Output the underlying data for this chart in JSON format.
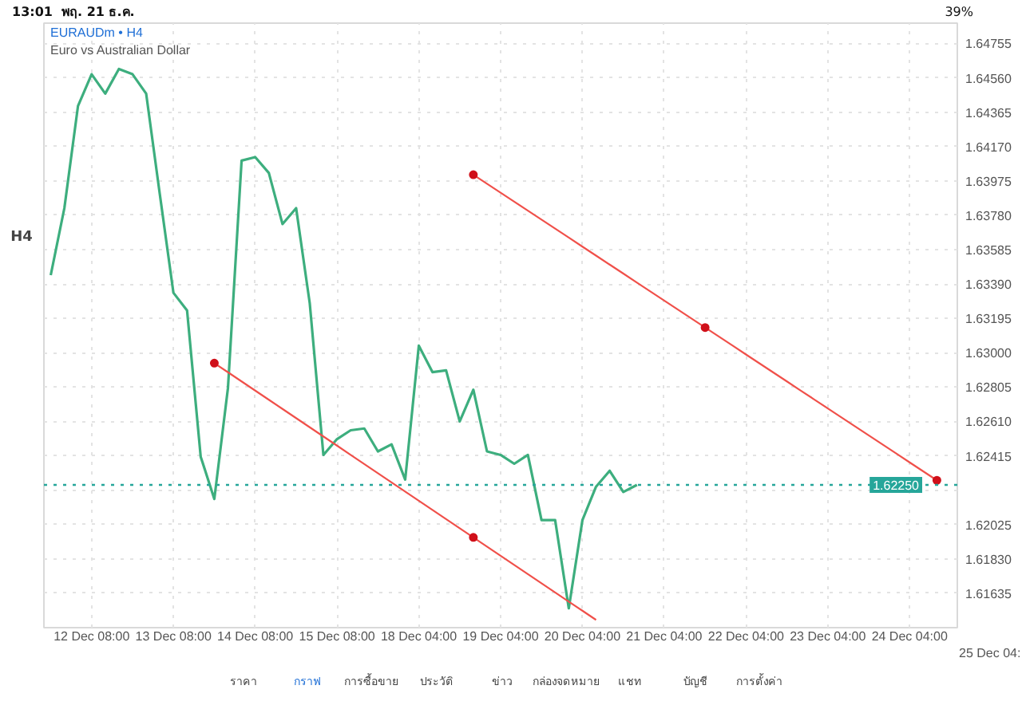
{
  "chart_data": {
    "type": "line",
    "title": "EURAUDm • H4",
    "subtitle": "Euro vs Australian Dollar",
    "categories": [
      null,
      null,
      null,
      "12 Dec 08:00",
      null,
      null,
      null,
      null,
      null,
      "13 Dec 08:00",
      null,
      null,
      null,
      null,
      null,
      "14 Dec 08:00",
      null,
      null,
      null,
      null,
      null,
      "15 Dec 08:00",
      null,
      null,
      null,
      null,
      null,
      "18 Dec 04:00",
      null,
      null,
      null,
      null,
      null,
      "19 Dec 04:00",
      null,
      null,
      null,
      null,
      null,
      "20 Dec 04:00",
      null,
      null,
      null,
      null,
      null,
      "21 Dec 04:00",
      null,
      null,
      null,
      null,
      null,
      "22 Dec 04:00",
      null,
      null,
      null,
      null,
      null,
      "23 Dec 04:00",
      null,
      null,
      null,
      null,
      null,
      "24 Dec 04:00",
      null,
      null,
      null
    ],
    "series": [
      {
        "color": "#3dae7e",
        "values": [
          1.6344,
          1.6382,
          1.644,
          1.6458,
          1.6447,
          1.6461,
          1.6458,
          1.6447,
          1.639,
          1.6334,
          1.6324,
          1.6241,
          1.6217,
          1.628,
          1.6409,
          1.6411,
          1.6402,
          1.6373,
          1.6382,
          1.6328,
          1.6242,
          1.6251,
          1.6256,
          1.6257,
          1.6244,
          1.6248,
          1.6228,
          1.6304,
          1.6289,
          1.629,
          1.6261,
          1.6279,
          1.6244,
          1.6242,
          1.6237,
          1.6242,
          1.6205,
          1.6205,
          1.6155,
          1.6205,
          1.6224,
          1.6233,
          1.6221,
          1.6225,
          null,
          null,
          null,
          null,
          null,
          null,
          null,
          null,
          null,
          null,
          null,
          null,
          null,
          null,
          null,
          null,
          null,
          null,
          null,
          null,
          null,
          null,
          null
        ]
      },
      {
        "color": "#f0504a",
        "values": [
          null,
          null,
          null,
          null,
          null,
          null,
          null,
          null,
          null,
          null,
          null,
          null,
          1.62941,
          1.62889,
          1.62837,
          1.62785,
          1.62733,
          1.62681,
          1.62629,
          1.62577,
          1.62525,
          1.62473,
          1.6242,
          1.62368,
          1.62316,
          1.62264,
          1.62212,
          1.6216,
          1.62108,
          1.62056,
          1.62004,
          1.61952,
          1.619,
          1.61848,
          1.61796,
          1.61744,
          1.61692,
          1.6164,
          1.61588,
          1.61536,
          1.61484,
          null,
          null,
          null,
          null,
          null,
          null,
          null,
          null,
          null,
          null,
          null,
          null,
          null,
          null,
          null,
          null,
          null,
          null,
          null,
          null,
          null,
          null,
          null,
          null,
          null,
          null
        ]
      },
      {
        "color": "#f0504a",
        "values": [
          null,
          null,
          null,
          null,
          null,
          null,
          null,
          null,
          null,
          null,
          null,
          null,
          null,
          null,
          null,
          null,
          null,
          null,
          null,
          null,
          null,
          null,
          null,
          null,
          null,
          null,
          null,
          null,
          null,
          null,
          null,
          1.6401,
          1.63959,
          1.63908,
          1.63857,
          1.63806,
          1.63755,
          1.63704,
          1.63653,
          1.63602,
          1.63551,
          1.635,
          1.63449,
          1.63398,
          1.63347,
          1.63296,
          1.63245,
          1.63194,
          1.63143,
          1.63092,
          1.63041,
          1.6299,
          1.62939,
          1.62888,
          1.62837,
          1.62786,
          1.62735,
          1.62684,
          1.62633,
          1.62582,
          1.62531,
          1.6248,
          1.62429,
          1.62378,
          1.62327,
          1.62276,
          null
        ]
      },
      {
        "type": "scatter",
        "color": "#d0101a",
        "marker": "circle",
        "values": [
          null,
          null,
          null,
          null,
          null,
          null,
          null,
          null,
          null,
          null,
          null,
          null,
          1.62941,
          null,
          null,
          null,
          null,
          null,
          null,
          null,
          null,
          null,
          null,
          null,
          null,
          null,
          null,
          null,
          null,
          null,
          null,
          1.61952,
          null,
          null,
          null,
          null,
          null,
          null,
          null,
          null,
          null,
          null,
          null,
          null,
          null,
          null,
          null,
          null,
          null,
          null,
          null,
          null,
          null,
          null,
          null,
          null,
          null,
          null,
          null,
          null,
          null,
          null,
          null,
          null,
          null,
          null,
          null
        ]
      },
      {
        "type": "scatter",
        "color": "#d0101a",
        "marker": "circle",
        "values": [
          null,
          null,
          null,
          null,
          null,
          null,
          null,
          null,
          null,
          null,
          null,
          null,
          null,
          null,
          null,
          null,
          null,
          null,
          null,
          null,
          null,
          null,
          null,
          null,
          null,
          null,
          null,
          null,
          null,
          null,
          null,
          1.6401,
          null,
          null,
          null,
          null,
          null,
          null,
          null,
          null,
          null,
          null,
          null,
          null,
          null,
          null,
          null,
          null,
          1.63143,
          null,
          null,
          null,
          null,
          null,
          null,
          null,
          null,
          null,
          null,
          null,
          null,
          null,
          null,
          null,
          null,
          1.62276,
          null
        ]
      }
    ],
    "ylim": [
      1.6144,
      1.6487
    ],
    "yticks": [
      {
        "value": 1.61635,
        "label": "1.61635"
      },
      {
        "value": 1.6183,
        "label": "1.61830"
      },
      {
        "value": 1.62025,
        "label": "1.62025"
      },
      {
        "value": 1.6222,
        "label": null
      },
      {
        "value": 1.62415,
        "label": "1.62415"
      },
      {
        "value": 1.6261,
        "label": "1.62610"
      },
      {
        "value": 1.62805,
        "label": "1.62805"
      },
      {
        "value": 1.63,
        "label": "1.63000"
      },
      {
        "value": 1.63195,
        "label": "1.63195"
      },
      {
        "value": 1.6339,
        "label": "1.63390"
      },
      {
        "value": 1.63585,
        "label": "1.63585"
      },
      {
        "value": 1.6378,
        "label": "1.63780"
      },
      {
        "value": 1.63975,
        "label": "1.63975"
      },
      {
        "value": 1.6417,
        "label": "1.64170"
      },
      {
        "value": 1.64365,
        "label": "1.64365"
      },
      {
        "value": 1.6456,
        "label": "1.64560"
      },
      {
        "value": 1.64755,
        "label": "1.64755"
      }
    ],
    "ref_lines": [
      {
        "axis": "y",
        "value": 1.6225,
        "label": "1.62250",
        "color": "#26a69a",
        "line_style": "dotted"
      }
    ],
    "grid": true,
    "line_style": "solid",
    "annotations": [
      "13:01",
      "พฤ. 21 ธ.ค.",
      "39%",
      "H4",
      "ราคา",
      "กราฟ",
      "การซื้อขาย",
      "ประวัติ",
      "ข่าว",
      "กล่องจดหมาย",
      "แชท",
      "บัญชี",
      "การตั้งค่า",
      "25 Dec 04:"
    ]
  }
}
